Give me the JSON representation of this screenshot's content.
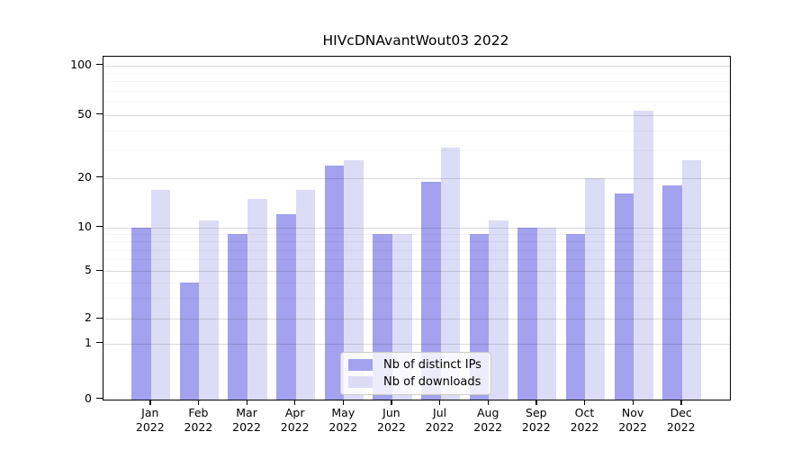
{
  "title": "HIVcDNAvantWout03 2022",
  "chart_data": {
    "type": "bar",
    "title": "HIVcDNAvantWout03 2022",
    "categories": [
      "Jan",
      "Feb",
      "Mar",
      "Apr",
      "May",
      "Jun",
      "Jul",
      "Aug",
      "Sep",
      "Oct",
      "Nov",
      "Dec"
    ],
    "category_year": "2022",
    "series": [
      {
        "name": "Nb of distinct IPs",
        "color": "#a2a2ee",
        "values": [
          10,
          4,
          9,
          12,
          24,
          9,
          19,
          9,
          10,
          9,
          16,
          18
        ]
      },
      {
        "name": "Nb of downloads",
        "color": "#dcdcf7",
        "values": [
          17,
          11,
          15,
          17,
          26,
          9,
          31,
          11,
          10,
          20,
          53,
          26
        ]
      }
    ],
    "xlabel": "",
    "ylabel": "",
    "yscale": "log-like (symlog: linear 0-1, log above)",
    "yticks": [
      0,
      1,
      2,
      5,
      10,
      20,
      50,
      100
    ],
    "minor_yticks": [
      3,
      4,
      6,
      7,
      8,
      9,
      30,
      40,
      60,
      70,
      80,
      90
    ],
    "ylim": [
      0,
      105
    ],
    "grid": true,
    "legend_position": "lower center"
  }
}
